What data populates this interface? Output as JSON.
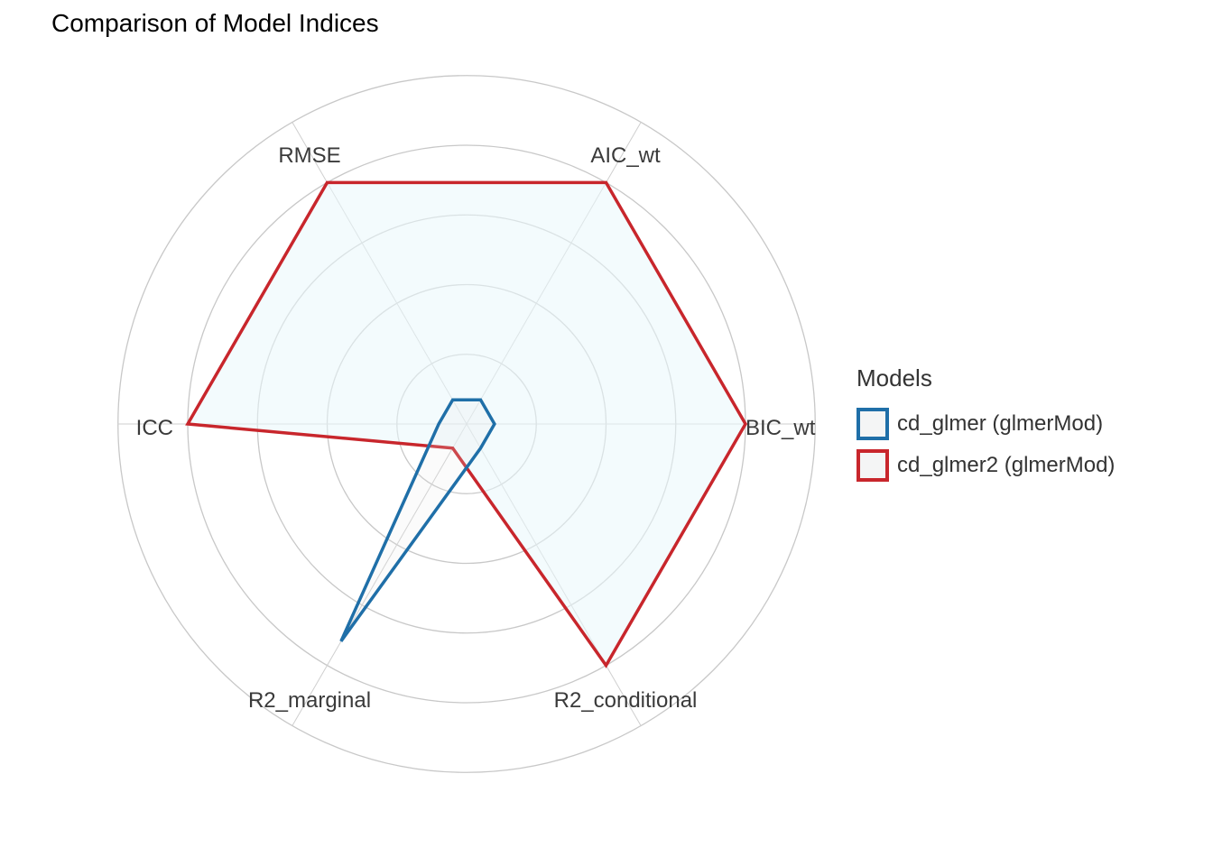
{
  "chart_data": {
    "type": "radar",
    "title": "Comparison of Model Indices",
    "axes": [
      "BIC_wt",
      "AIC_wt",
      "RMSE",
      "ICC",
      "R2_marginal",
      "R2_conditional"
    ],
    "rlim": [
      0,
      1
    ],
    "grid": true,
    "grid_rings": [
      0.25,
      0.5,
      0.75,
      1.0,
      1.25
    ],
    "legend": {
      "title": "Models",
      "placement": "right"
    },
    "series": [
      {
        "name": "cd_glmer (glmerMod)",
        "color": "#1f6fa8",
        "values": [
          0.1,
          0.1,
          0.1,
          0.1,
          0.9,
          0.1
        ]
      },
      {
        "name": "cd_glmer2 (glmerMod)",
        "color": "#c8262c",
        "fill": "#e9f7fb",
        "values": [
          1.0,
          1.0,
          1.0,
          1.0,
          0.1,
          1.0
        ]
      }
    ]
  }
}
